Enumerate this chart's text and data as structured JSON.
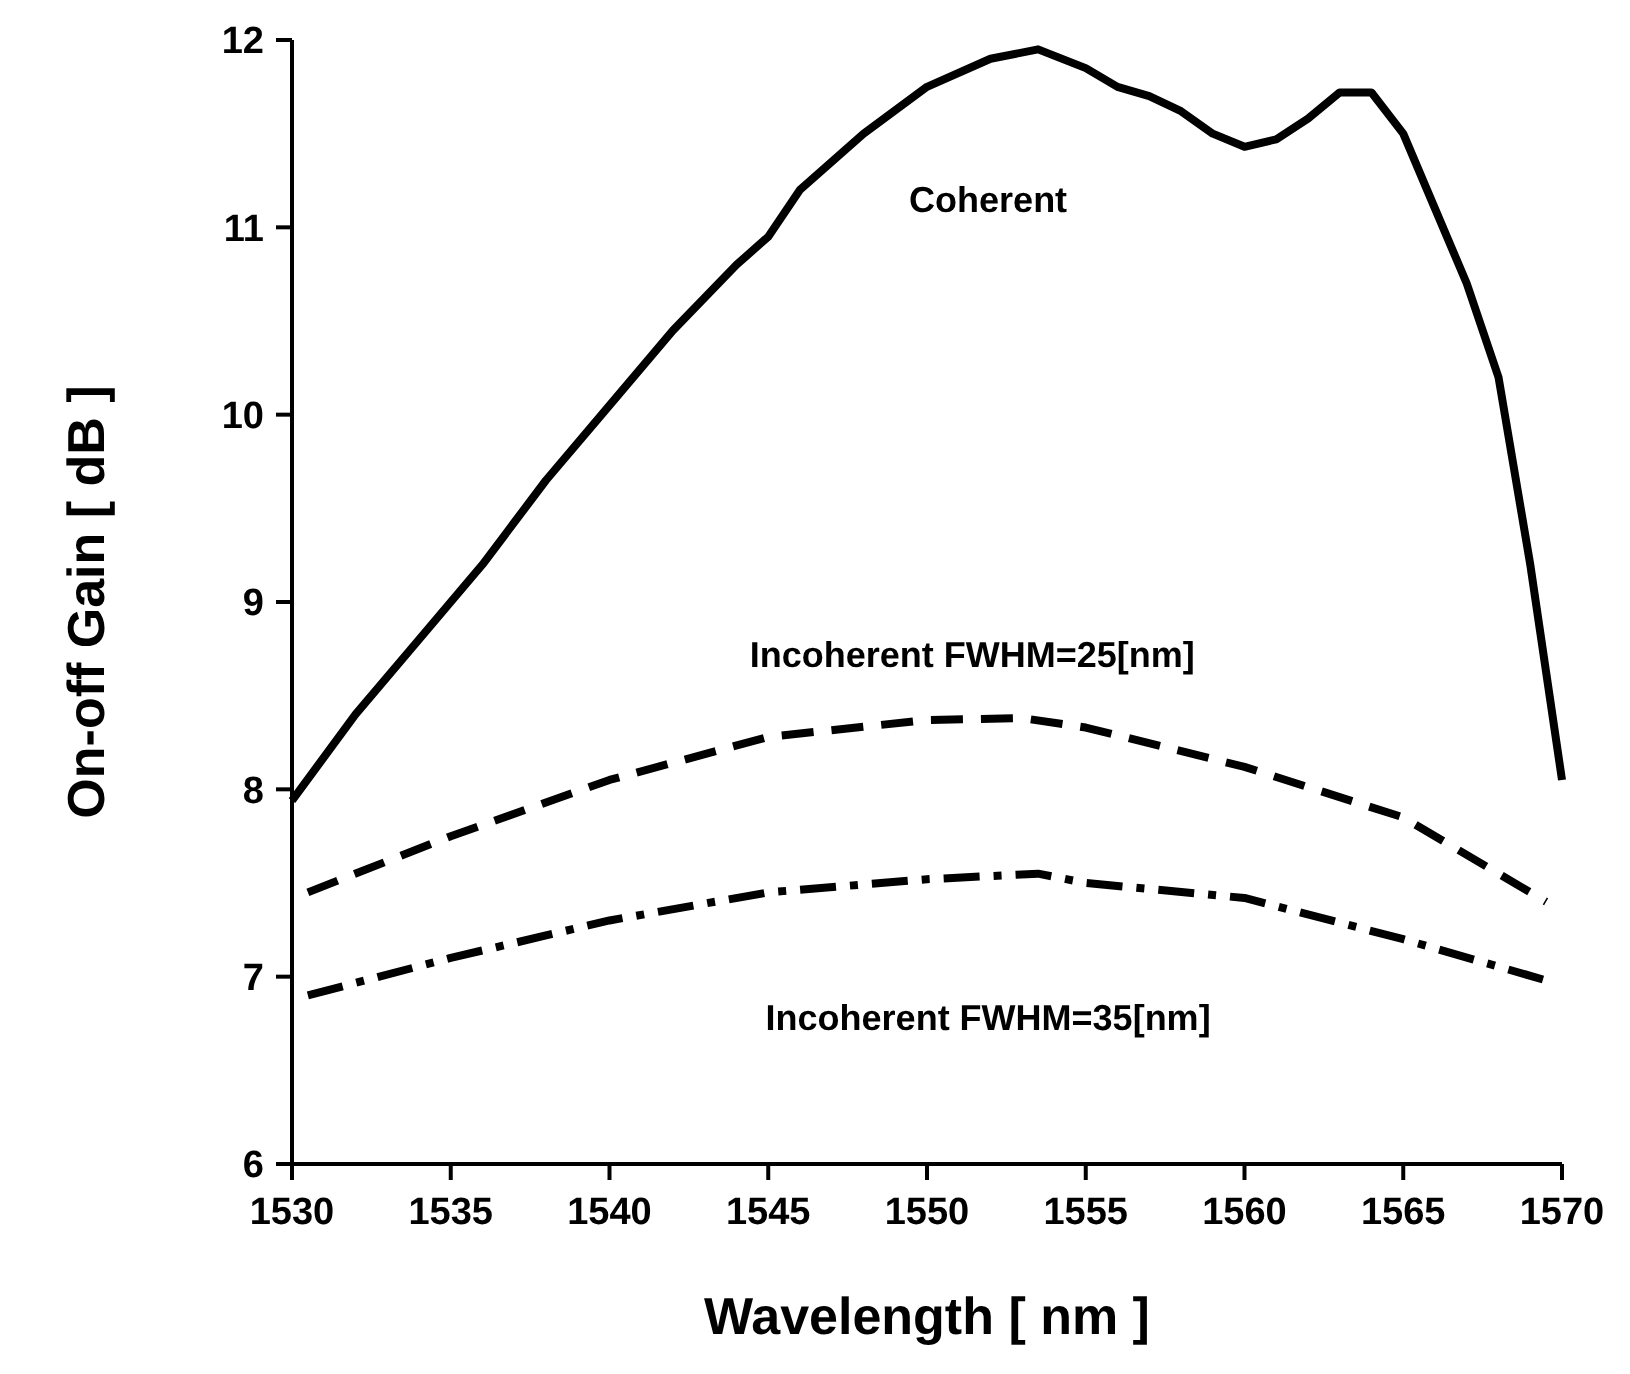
{
  "chart_data": {
    "type": "line",
    "xlabel": "Wavelength [ nm ]",
    "ylabel": "On-off Gain [ dB ]",
    "xlim": [
      1530,
      1570
    ],
    "xticks": [
      1530,
      1535,
      1540,
      1545,
      1550,
      1555,
      1560,
      1565,
      1570
    ],
    "ylim": [
      6,
      12
    ],
    "yticks": [
      6,
      7,
      8,
      9,
      10,
      11,
      12
    ],
    "grid": false,
    "marker": "none",
    "series": [
      {
        "name": "Coherent",
        "color": "#000000",
        "line_style": "solid",
        "x": [
          1530,
          1532,
          1534,
          1535,
          1536,
          1538,
          1540,
          1542,
          1544,
          1545,
          1546,
          1548,
          1550,
          1552,
          1553.5,
          1555,
          1556,
          1557,
          1558,
          1559,
          1560,
          1561,
          1562,
          1563,
          1564,
          1565,
          1566,
          1567,
          1568,
          1569,
          1570
        ],
        "values": [
          7.94,
          8.4,
          8.8,
          9.0,
          9.2,
          9.65,
          10.05,
          10.45,
          10.8,
          10.95,
          11.2,
          11.5,
          11.75,
          11.9,
          11.95,
          11.85,
          11.75,
          11.7,
          11.62,
          11.5,
          11.43,
          11.47,
          11.58,
          11.72,
          11.72,
          11.5,
          11.1,
          10.7,
          10.2,
          9.2,
          8.05
        ]
      },
      {
        "name": "Incoherent FWHM=25[nm]",
        "color": "#000000",
        "line_style": "dashed",
        "x": [
          1530.5,
          1535,
          1540,
          1545,
          1550,
          1553,
          1555,
          1560,
          1565,
          1569.5
        ],
        "values": [
          7.45,
          7.75,
          8.05,
          8.28,
          8.37,
          8.38,
          8.33,
          8.12,
          7.85,
          7.4
        ]
      },
      {
        "name": "Incoherent FWHM=35[nm]",
        "color": "#000000",
        "line_style": "dashdot",
        "x": [
          1530.5,
          1535,
          1540,
          1545,
          1550,
          1553.5,
          1555,
          1560,
          1565,
          1569.5
        ],
        "values": [
          6.9,
          7.1,
          7.3,
          7.45,
          7.52,
          7.55,
          7.5,
          7.42,
          7.2,
          6.98
        ]
      }
    ]
  }
}
